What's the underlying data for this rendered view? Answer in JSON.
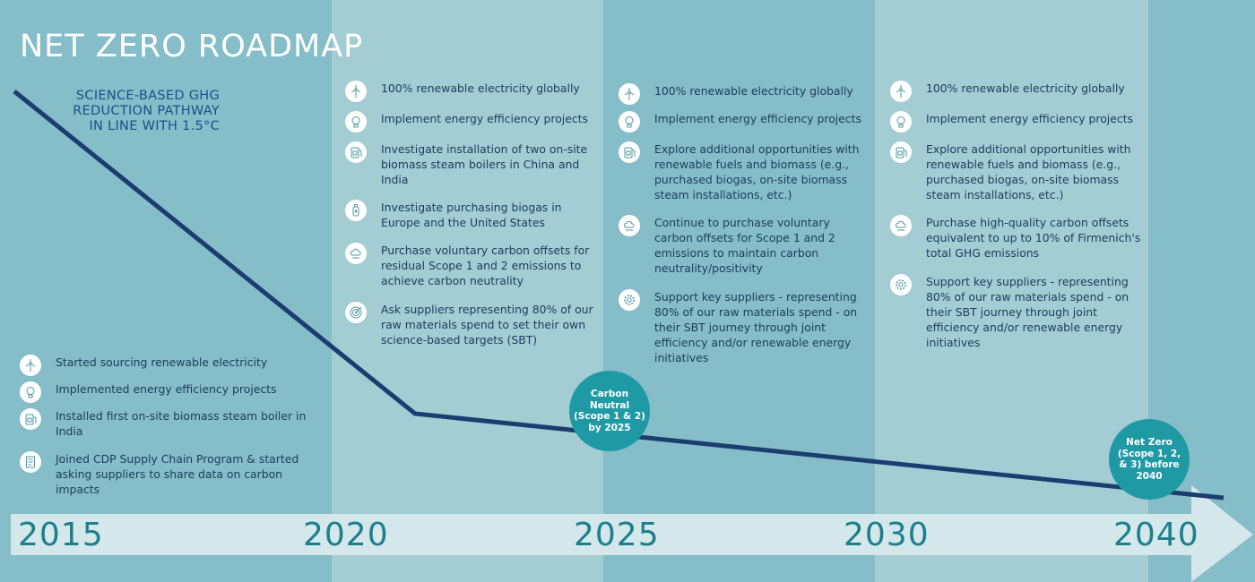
{
  "title": "NET ZERO ROADMAP",
  "pathway_label": "SCIENCE-BASED GHG\nREDUCTION PATHWAY\nIN LINE WITH 1.5°C",
  "colors": {
    "band_dark": "#85bdc8",
    "band_light": "#a3ccd3",
    "trajectory": "#1c3d70",
    "arrow": "#d4e8ec",
    "badge": "#1f9aa5",
    "year_text": "#1c7f8b",
    "item_text": "#1d3c5a",
    "title_text": "#ffffff"
  },
  "periods": [
    {
      "id": "2015",
      "items": [
        {
          "icon": "wind-turbine-icon",
          "text": "Started sourcing renewable electricity"
        },
        {
          "icon": "lightbulb-icon",
          "text": "Implemented energy efficiency projects"
        },
        {
          "icon": "boiler-icon",
          "text": "Installed first on-site biomass steam boiler in India"
        },
        {
          "icon": "document-icon",
          "text": "Joined CDP Supply Chain Program & started asking suppliers to share data on carbon impacts"
        }
      ]
    },
    {
      "id": "2020",
      "items": [
        {
          "icon": "wind-turbine-icon",
          "text": "100% renewable electricity globally"
        },
        {
          "icon": "lightbulb-icon",
          "text": "Implement energy efficiency projects"
        },
        {
          "icon": "boiler-icon",
          "text": "Investigate installation of two on-site biomass steam boilers in China and India"
        },
        {
          "icon": "gas-bottle-icon",
          "text": "Investigate purchasing biogas in Europe and the United States"
        },
        {
          "icon": "carbon-cloud-icon",
          "text": "Purchase voluntary carbon offsets for residual Scope 1 and 2 emissions to achieve carbon neutrality"
        },
        {
          "icon": "target-icon",
          "text": "Ask suppliers representing 80% of our raw materials spend to set their own science-based targets (SBT)"
        }
      ]
    },
    {
      "id": "2025",
      "items": [
        {
          "icon": "wind-turbine-icon",
          "text": "100% renewable electricity globally"
        },
        {
          "icon": "lightbulb-icon",
          "text": "Implement energy efficiency projects"
        },
        {
          "icon": "boiler-icon",
          "text": "Explore additional opportunities with renewable fuels and biomass (e.g., purchased biogas, on-site biomass steam installations, etc.)"
        },
        {
          "icon": "carbon-cloud-icon",
          "text": "Continue to purchase voluntary carbon offsets for Scope 1 and 2 emissions to maintain carbon neutrality/positivity"
        },
        {
          "icon": "gear-icon",
          "text": "Support key suppliers - representing 80% of our raw materials spend - on their SBT journey through joint efficiency and/or renewable energy initiatives"
        }
      ]
    },
    {
      "id": "2030",
      "items": [
        {
          "icon": "wind-turbine-icon",
          "text": "100% renewable electricity globally"
        },
        {
          "icon": "lightbulb-icon",
          "text": "Implement energy efficiency projects"
        },
        {
          "icon": "boiler-icon",
          "text": "Explore additional opportunities with renewable fuels and biomass (e.g., purchased biogas, on-site biomass steam installations, etc.)"
        },
        {
          "icon": "carbon-cloud-icon",
          "text": "Purchase high-quality carbon offsets equivalent to up to 10% of Firmenich's total GHG emissions"
        },
        {
          "icon": "gear-icon",
          "text": "Support key suppliers - representing 80% of our raw materials spend - on their SBT journey through joint efficiency and/or renewable energy initiatives"
        }
      ]
    }
  ],
  "milestones": [
    {
      "id": "carbon-neutral",
      "text": "Carbon\nNeutral\n(Scope 1 & 2)\nby 2025"
    },
    {
      "id": "net-zero",
      "text": "Net Zero\n(Scope 1, 2,\n& 3) before\n2040"
    }
  ],
  "timeline": {
    "years": [
      "2015",
      "2020",
      "2025",
      "2030",
      "2040"
    ]
  }
}
